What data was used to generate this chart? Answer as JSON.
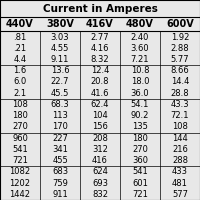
{
  "title": "Current in Amperes",
  "columns": [
    "440V",
    "380V",
    "416V",
    "480V",
    "600V"
  ],
  "rows": [
    [
      ".81",
      "3.03",
      "2.77",
      "2.40",
      "1.92"
    ],
    [
      ".21",
      "4.55",
      "4.16",
      "3.60",
      "2.88"
    ],
    [
      "4.4",
      "9.11",
      "8.32",
      "7.21",
      "5.77"
    ],
    [
      "1.6",
      "13.6",
      "12.4",
      "10.8",
      "8.66"
    ],
    [
      "6.0",
      "22.7",
      "20.8",
      "18.0",
      "14.4"
    ],
    [
      "2.1",
      "45.5",
      "41.6",
      "36.0",
      "28.8"
    ],
    [
      "108",
      "68.3",
      "62.4",
      "54.1",
      "43.3"
    ],
    [
      "180",
      "113",
      "104",
      "90.2",
      "72.1"
    ],
    [
      "270",
      "170",
      "156",
      "135",
      "108"
    ],
    [
      "960",
      "227",
      "208",
      "180",
      "144"
    ],
    [
      "541",
      "341",
      "312",
      "270",
      "216"
    ],
    [
      "721",
      "455",
      "416",
      "360",
      "288"
    ],
    [
      "1082",
      "683",
      "624",
      "541",
      "433"
    ],
    [
      "1202",
      "759",
      "693",
      "601",
      "481"
    ],
    [
      "1442",
      "911",
      "832",
      "721",
      "577"
    ]
  ],
  "bg_color": "#e8e8e8",
  "title_fontsize": 7.5,
  "cell_fontsize": 6.0,
  "header_fontsize": 7.0
}
